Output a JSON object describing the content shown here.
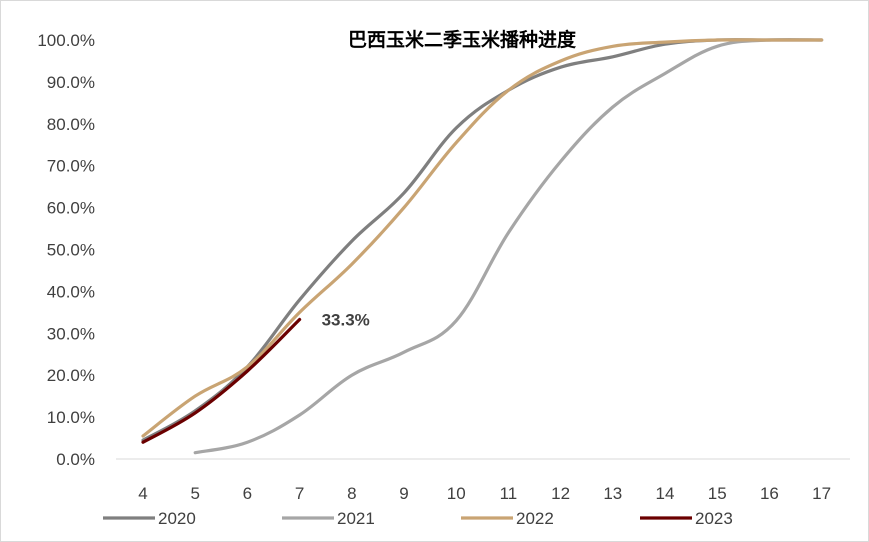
{
  "chart_data": {
    "type": "line",
    "title": "巴西玉米二季玉米播种进度",
    "xlabel": "",
    "ylabel": "",
    "x": [
      4,
      5,
      6,
      7,
      8,
      9,
      10,
      11,
      12,
      13,
      14,
      15,
      16,
      17
    ],
    "x_tick_labels": [
      "4",
      "5",
      "6",
      "7",
      "8",
      "9",
      "10",
      "11",
      "12",
      "13",
      "14",
      "15",
      "16",
      "17"
    ],
    "y_tick_labels": [
      "0.0%",
      "10.0%",
      "20.0%",
      "30.0%",
      "40.0%",
      "50.0%",
      "60.0%",
      "70.0%",
      "80.0%",
      "90.0%",
      "100.0%"
    ],
    "ylim": [
      0,
      100
    ],
    "xlim": [
      4,
      17
    ],
    "grid": false,
    "legend_position": "bottom",
    "series": [
      {
        "name": "2020",
        "color": "#7f7f7f",
        "x": [
          4,
          5,
          6,
          7,
          8,
          9,
          10,
          11,
          12,
          13,
          14,
          15,
          16,
          17
        ],
        "values": [
          4.5,
          11.5,
          22,
          38,
          52,
          63.5,
          79,
          88,
          93.5,
          96,
          99,
          100,
          100,
          100
        ]
      },
      {
        "name": "2021",
        "color": "#a6a6a6",
        "x": [
          5,
          6,
          7,
          8,
          9,
          10,
          11,
          12,
          13,
          14,
          15,
          16,
          17
        ],
        "values": [
          1.5,
          4,
          10.5,
          20,
          25.5,
          33,
          54,
          71,
          84,
          92,
          98.5,
          100,
          100
        ]
      },
      {
        "name": "2022",
        "color": "#c9a473",
        "x": [
          4,
          5,
          6,
          7,
          8,
          9,
          10,
          11,
          12,
          13,
          14,
          15,
          16,
          17
        ],
        "values": [
          5.5,
          15,
          22,
          35,
          46.5,
          60,
          75.5,
          88,
          95,
          98.5,
          99.5,
          100,
          100,
          100
        ]
      },
      {
        "name": "2023",
        "color": "#6b0000",
        "x": [
          4,
          5,
          6,
          7
        ],
        "values": [
          4,
          11,
          21,
          33.3
        ]
      }
    ],
    "annotations": [
      {
        "text": "33.3%",
        "x": 7,
        "y": 33.3,
        "series": "2023"
      }
    ]
  }
}
